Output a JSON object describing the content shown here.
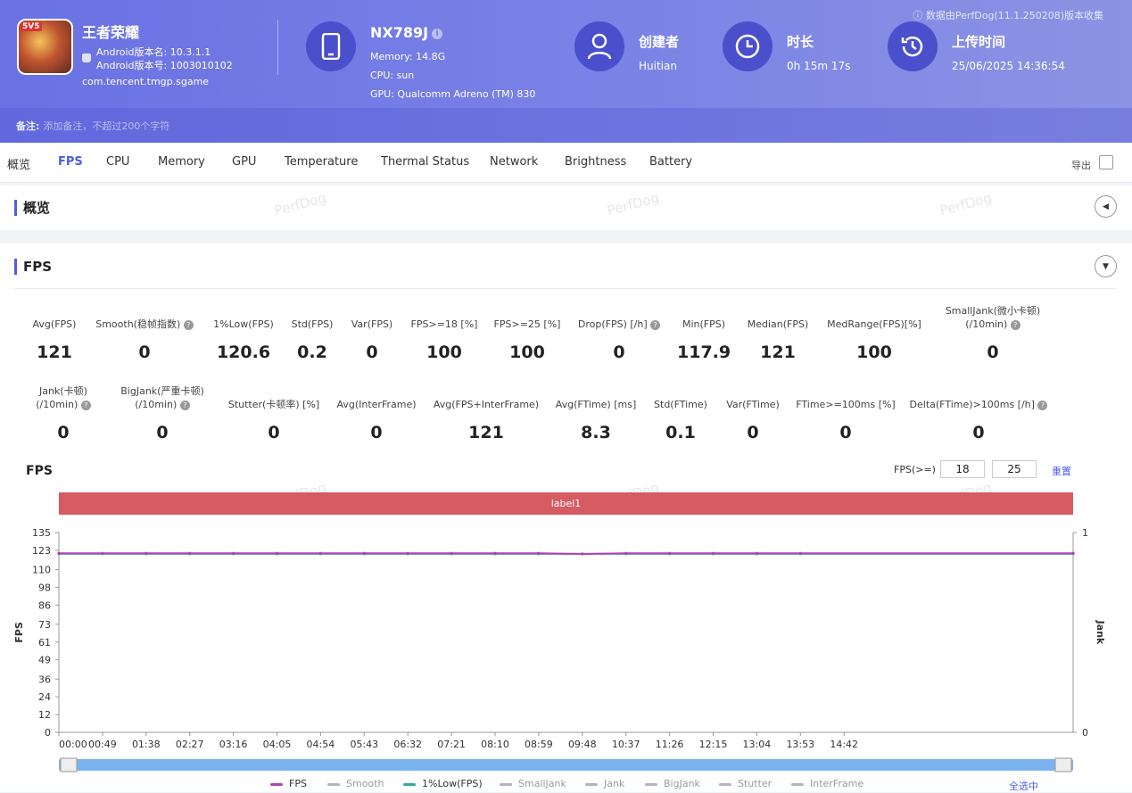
{
  "app": {
    "name": "王者荣耀",
    "version_name": "Android版本名: 10.3.1.1",
    "version_code": "Android版本号: 1003010102",
    "package": "com.tencent.tmgp.sgame",
    "icon_badge": "5V5"
  },
  "device": {
    "name": "NX789J",
    "memory": "Memory: 14.8G",
    "cpu": "CPU: sun",
    "gpu": "GPU: Qualcomm Adreno (TM) 830"
  },
  "creator": {
    "label": "创建者",
    "value": "Huitian"
  },
  "duration": {
    "label": "时长",
    "value": "0h 15m 17s"
  },
  "upload": {
    "label": "上传时间",
    "value": "25/06/2025 14:36:54"
  },
  "source_note": "数据由PerfDog(11.1.250208)版本收集",
  "note": {
    "label": "备注:",
    "placeholder": "添加备注，不超过200个字符"
  },
  "tabs": [
    "概览",
    "FPS",
    "CPU",
    "Memory",
    "GPU",
    "Temperature",
    "Thermal Status",
    "Network",
    "Brightness",
    "Battery"
  ],
  "active_tab": "FPS",
  "export_label": "导出",
  "sections": {
    "overview": "概览",
    "fps": "FPS"
  },
  "watermark": "PerfDog",
  "stats_row1": [
    {
      "label": "Avg(FPS)",
      "value": "121"
    },
    {
      "label": "Smooth(稳帧指数)",
      "value": "0"
    },
    {
      "label": "1%Low(FPS)",
      "value": "120.6"
    },
    {
      "label": "Std(FPS)",
      "value": "0.2"
    },
    {
      "label": "Var(FPS)",
      "value": "0"
    },
    {
      "label": "FPS>=18 [%]",
      "value": "100"
    },
    {
      "label": "FPS>=25 [%]",
      "value": "100"
    },
    {
      "label": "Drop(FPS) [/h]",
      "value": "0"
    },
    {
      "label": "Min(FPS)",
      "value": "117.9"
    },
    {
      "label": "Median(FPS)",
      "value": "121"
    },
    {
      "label": "MedRange(FPS)[%]",
      "value": "100"
    },
    {
      "label": "SmallJank(微小卡顿)",
      "label2": "(/10min)",
      "value": "0"
    }
  ],
  "stats_row2": [
    {
      "label": "Jank(卡顿)",
      "label2": "(/10min)",
      "value": "0"
    },
    {
      "label": "BigJank(严重卡顿)",
      "label2": "(/10min)",
      "value": "0"
    },
    {
      "label": "Stutter(卡顿率) [%]",
      "value": "0"
    },
    {
      "label": "Avg(InterFrame)",
      "value": "0"
    },
    {
      "label": "Avg(FPS+InterFrame)",
      "value": "121"
    },
    {
      "label": "Avg(FTime) [ms]",
      "value": "8.3"
    },
    {
      "label": "Std(FTime)",
      "value": "0.1"
    },
    {
      "label": "Var(FTime)",
      "value": "0"
    },
    {
      "label": "FTime>=100ms [%]",
      "value": "0"
    },
    {
      "label": "Delta(FTime)>100ms [/h]",
      "value": "0"
    }
  ],
  "chart_controls": {
    "title": "FPS",
    "threshold_label": "FPS(>=)",
    "threshold_1": "18",
    "threshold_2": "25",
    "reset_label": "重置",
    "band_label": "label1",
    "select_all": "全选中"
  },
  "chart_data": {
    "type": "line",
    "ylabel": "FPS",
    "y2label": "Jank",
    "yticks": [
      0,
      12,
      24,
      36,
      49,
      61,
      73,
      86,
      98,
      110,
      123,
      135
    ],
    "y2ticks": [
      0,
      1
    ],
    "ylim": [
      0,
      135
    ],
    "y2lim": [
      0,
      1
    ],
    "x": [
      "00:00",
      "00:49",
      "01:38",
      "02:27",
      "03:16",
      "04:05",
      "04:54",
      "05:43",
      "06:32",
      "07:21",
      "08:10",
      "08:59",
      "09:48",
      "10:37",
      "11:26",
      "12:15",
      "13:04",
      "13:53",
      "14:42"
    ],
    "series": [
      {
        "name": "FPS",
        "color": "#b044b4",
        "values": [
          121,
          121,
          121,
          121,
          121,
          121,
          121,
          121,
          121,
          121,
          121,
          121,
          120.5,
          121,
          121,
          121,
          121,
          121,
          121
        ]
      },
      {
        "name": "1%Low(FPS)",
        "color": "#3aa8a0",
        "values": [
          120.6,
          120.6,
          120.6,
          120.6,
          120.6,
          120.6,
          120.6,
          120.6,
          120.6,
          120.6,
          120.6,
          120.6,
          120.6,
          120.6,
          120.6,
          120.6,
          120.6,
          120.6,
          120.6
        ]
      }
    ],
    "legend": [
      {
        "name": "FPS",
        "color": "#b044b4"
      },
      {
        "name": "Smooth",
        "color": "#b0b4c0"
      },
      {
        "name": "1%Low(FPS)",
        "color": "#3aa8a0"
      },
      {
        "name": "SmallJank",
        "color": "#b0b4c0"
      },
      {
        "name": "Jank",
        "color": "#b0b4c0"
      },
      {
        "name": "BigJank",
        "color": "#b0b4c0"
      },
      {
        "name": "Stutter",
        "color": "#b0b4c0"
      },
      {
        "name": "InterFrame",
        "color": "#b0b4c0"
      }
    ],
    "legend_position": "bottom",
    "grid": false
  }
}
